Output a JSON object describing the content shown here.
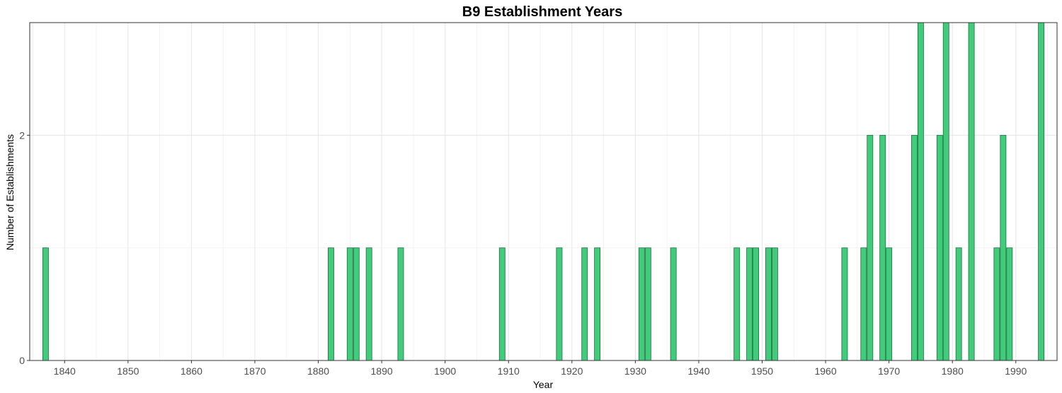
{
  "chart_data": {
    "type": "bar",
    "title": "B9 Establishment Years",
    "xlabel": "Year",
    "ylabel": "Number of Establishments",
    "x_ticks": [
      1840,
      1850,
      1860,
      1870,
      1880,
      1890,
      1900,
      1910,
      1920,
      1930,
      1940,
      1950,
      1960,
      1970,
      1980,
      1990
    ],
    "y_ticks": [
      0,
      2
    ],
    "xlim": [
      1834.5,
      1996.5
    ],
    "ylim": [
      0,
      3
    ],
    "grid": true,
    "bar_color": "#40cc7a",
    "bar_border_color": "#1f6e3f",
    "data": [
      {
        "x": 1837,
        "y": 1
      },
      {
        "x": 1882,
        "y": 1
      },
      {
        "x": 1885,
        "y": 1
      },
      {
        "x": 1886,
        "y": 1
      },
      {
        "x": 1888,
        "y": 1
      },
      {
        "x": 1893,
        "y": 1
      },
      {
        "x": 1909,
        "y": 1
      },
      {
        "x": 1918,
        "y": 1
      },
      {
        "x": 1922,
        "y": 1
      },
      {
        "x": 1924,
        "y": 1
      },
      {
        "x": 1931,
        "y": 1
      },
      {
        "x": 1932,
        "y": 1
      },
      {
        "x": 1936,
        "y": 1
      },
      {
        "x": 1946,
        "y": 1
      },
      {
        "x": 1948,
        "y": 1
      },
      {
        "x": 1949,
        "y": 1
      },
      {
        "x": 1951,
        "y": 1
      },
      {
        "x": 1952,
        "y": 1
      },
      {
        "x": 1963,
        "y": 1
      },
      {
        "x": 1966,
        "y": 1
      },
      {
        "x": 1967,
        "y": 2
      },
      {
        "x": 1969,
        "y": 2
      },
      {
        "x": 1970,
        "y": 1
      },
      {
        "x": 1974,
        "y": 2
      },
      {
        "x": 1975,
        "y": 3
      },
      {
        "x": 1978,
        "y": 2
      },
      {
        "x": 1979,
        "y": 3
      },
      {
        "x": 1981,
        "y": 1
      },
      {
        "x": 1983,
        "y": 3
      },
      {
        "x": 1987,
        "y": 1
      },
      {
        "x": 1988,
        "y": 2
      },
      {
        "x": 1989,
        "y": 1
      },
      {
        "x": 1994,
        "y": 3
      }
    ]
  }
}
